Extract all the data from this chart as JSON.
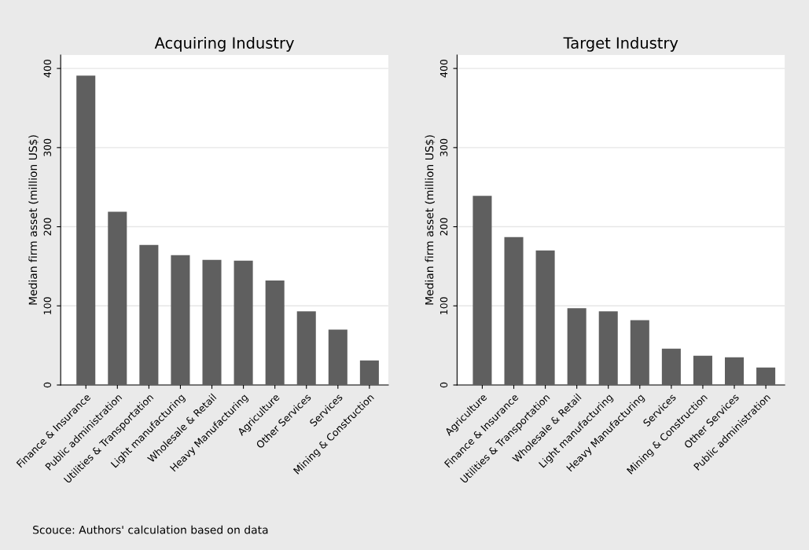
{
  "chart_data": [
    {
      "type": "bar",
      "title": "Acquiring Industry",
      "ylabel": "Median firm asset (million US$)",
      "categories": [
        "Finance & Insurance",
        "Public administration",
        "Utilities & Transportation",
        "Light manufacturing",
        "Wholesale & Retail",
        "Heavy Manufacturing",
        "Agriculture",
        "Other Services",
        "Services",
        "Mining & Construction"
      ],
      "values": [
        391,
        219,
        177,
        164,
        158,
        157,
        132,
        93,
        70,
        31
      ],
      "color": "#5f5f5f",
      "ylim": [
        0,
        417
      ],
      "yticks": [
        0,
        100,
        200,
        300,
        400
      ],
      "grid": "y",
      "annotations": [
        "Scouce: Authors' calculation based on data"
      ]
    },
    {
      "type": "bar",
      "title": "Target Industry",
      "ylabel": "Median firm asset (million US$)",
      "categories": [
        "Agriculture",
        "Finance & Insurance",
        "Utilities & Transportation",
        "Wholesale & Retail",
        "Light manufacturing",
        "Heavy Manufacturing",
        "Services",
        "Mining & Construction",
        "Other Services",
        "Public administration"
      ],
      "values": [
        239,
        187,
        170,
        97,
        93,
        82,
        46,
        37,
        35,
        22
      ],
      "color": "#5f5f5f",
      "ylim": [
        0,
        417
      ],
      "yticks": [
        0,
        100,
        200,
        300,
        400
      ],
      "grid": "y"
    }
  ]
}
